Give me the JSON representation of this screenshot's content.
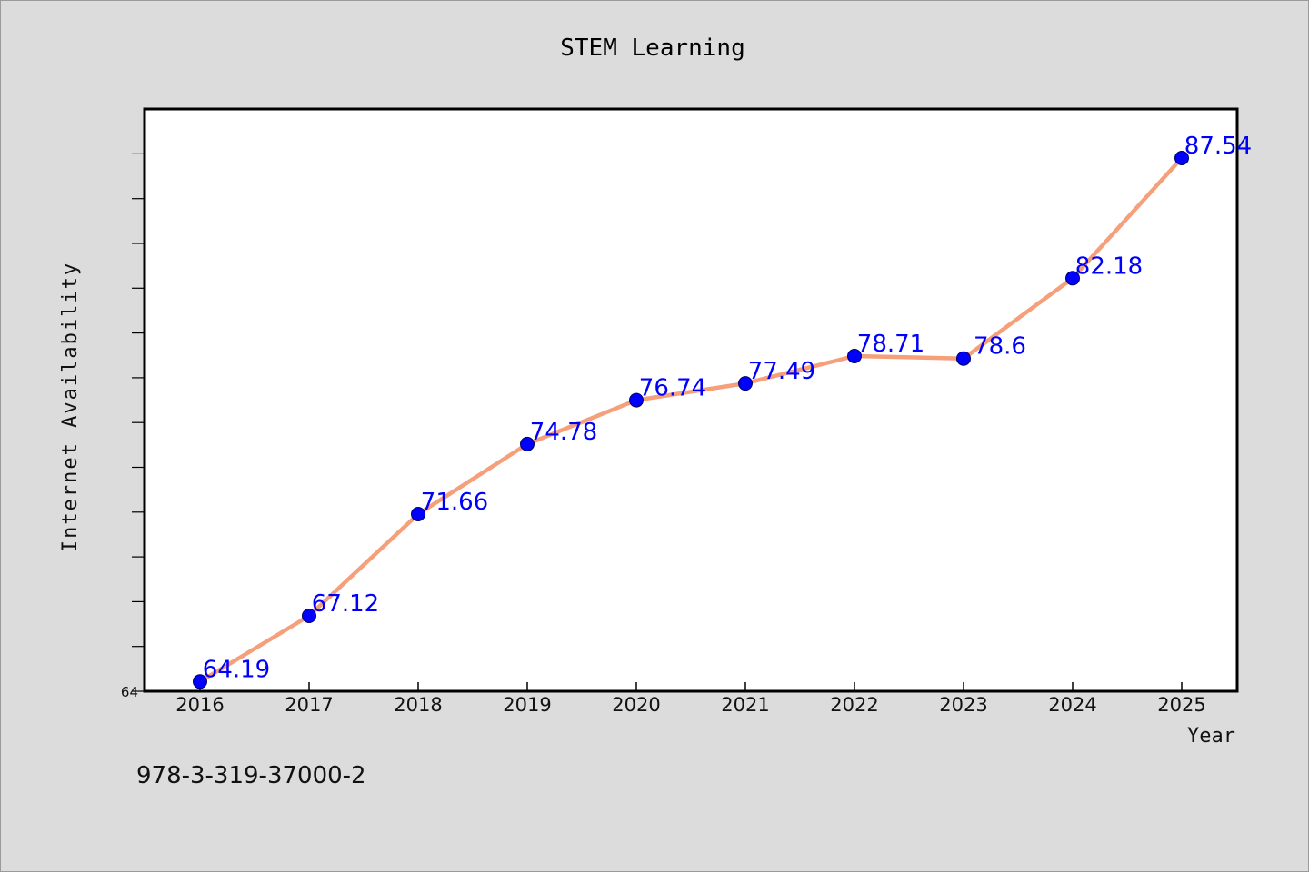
{
  "chart_data": {
    "type": "line",
    "title": "STEM Learning",
    "xlabel": "Year",
    "ylabel": "Internet Availability",
    "categories": [
      "2016",
      "2017",
      "2018",
      "2019",
      "2020",
      "2021",
      "2022",
      "2023",
      "2024",
      "2025"
    ],
    "series": [
      {
        "values": [
          64.19,
          67.12,
          71.66,
          74.78,
          76.74,
          77.49,
          78.71,
          78.6,
          82.18,
          87.54
        ],
        "color": "#f5a07a",
        "marker_color": "#0000ff"
      }
    ],
    "data_labels": [
      "64.19",
      "67.12",
      "71.66",
      "74.78",
      "76.74",
      "77.49",
      "78.71",
      "78.6",
      "82.18",
      "87.54"
    ],
    "ylim": [
      64,
      90
    ],
    "yticks_labeled": [
      "64"
    ],
    "grid": false,
    "legend": "none"
  },
  "footnote": "978-3-319-37000-2"
}
